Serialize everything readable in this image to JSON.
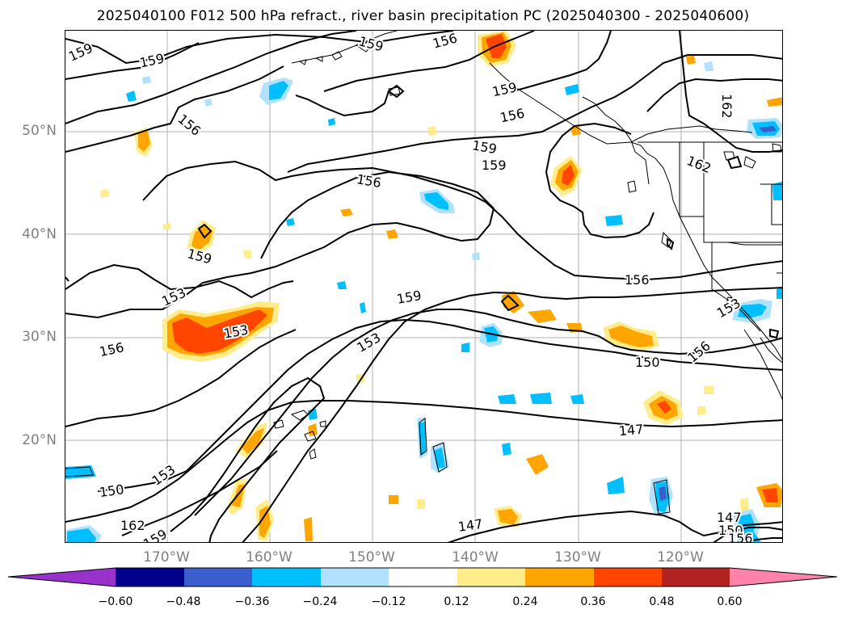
{
  "title": "2025040100 F012 500 hPa refract., river basin precipitation PC (2025040300 - 2025040600)",
  "map": {
    "lat_labels": [
      "50°N",
      "40°N",
      "30°N",
      "20°N"
    ],
    "lon_labels": [
      "170°W",
      "160°W",
      "150°W",
      "140°W",
      "130°W",
      "120°W"
    ],
    "contour_labels": [
      "159",
      "159",
      "156",
      "159",
      "156",
      "153",
      "156",
      "159",
      "159",
      "156",
      "153",
      "159",
      "153",
      "156",
      "159",
      "156",
      "150",
      "147",
      "150",
      "153",
      "162",
      "159",
      "147",
      "162",
      "153",
      "156",
      "162",
      "159",
      "147",
      "150",
      "156"
    ]
  },
  "colorbar": {
    "colors": [
      "#9932cc",
      "#00008b",
      "#3a5fcd",
      "#00bfff",
      "#b0e2ff",
      "#ffffff",
      "#ffec8b",
      "#ffa500",
      "#ff4500",
      "#b22222",
      "#ff82ab"
    ],
    "ticks": [
      "−0.60",
      "−0.48",
      "−0.36",
      "−0.24",
      "−0.12",
      "0.12",
      "0.24",
      "0.36",
      "0.48",
      "0.60"
    ]
  }
}
